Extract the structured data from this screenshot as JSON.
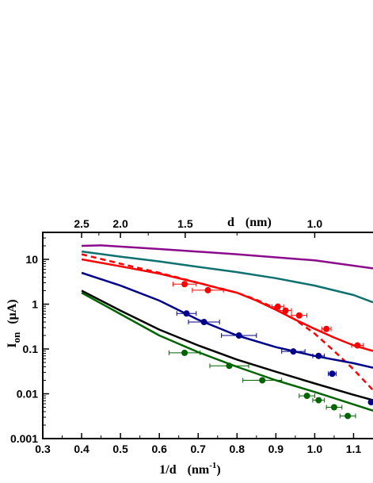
{
  "chart_data": {
    "type": "line",
    "x_axis": {
      "label": "1/d",
      "unit": "(nm",
      "unit_superscript": "-1",
      "unit_close": ")",
      "range": [
        0.3,
        1.15
      ],
      "ticks": [
        0.3,
        0.4,
        0.5,
        0.6,
        0.7,
        0.8,
        0.9,
        1.0,
        1.1
      ],
      "tick_labels": [
        "0.3",
        "0.4",
        "0.5",
        "0.6",
        "0.7",
        "0.8",
        "0.9",
        "1.0",
        "1.1"
      ]
    },
    "top_axis": {
      "label": "d",
      "unit": "(nm)",
      "ticks": [
        2.5,
        2.0,
        1.5,
        1.0
      ],
      "tick_labels": [
        "2.5",
        "2.0",
        "1.5",
        "1.0"
      ]
    },
    "y_axis": {
      "label_main": "I",
      "label_sub": "on",
      "unit": "(μA)",
      "scale": "log",
      "range": [
        0.001,
        40
      ],
      "ticks": [
        0.001,
        0.01,
        0.1,
        1,
        10
      ],
      "tick_labels": [
        "0.001",
        "0.01",
        "0.1",
        "1",
        "10"
      ]
    },
    "series": [
      {
        "color": "#8B0A8B",
        "style": "solid",
        "x": [
          0.4,
          0.45,
          0.6,
          0.8,
          1.0,
          1.15
        ],
        "y": [
          20,
          20.5,
          17,
          13,
          9.5,
          6.3
        ]
      },
      {
        "color": "#0F7070",
        "style": "solid",
        "x": [
          0.4,
          0.5,
          0.6,
          0.7,
          0.8,
          0.9,
          1.0,
          1.1,
          1.15
        ],
        "y": [
          15,
          11.5,
          9,
          6.8,
          5.2,
          3.8,
          2.6,
          1.6,
          1.1
        ]
      },
      {
        "color": "#FF0000",
        "style": "solid",
        "x": [
          0.4,
          0.5,
          0.6,
          0.7,
          0.75,
          0.8,
          0.85,
          0.9,
          0.95,
          1.0,
          1.05,
          1.1,
          1.15
        ],
        "y": [
          10,
          7,
          4.8,
          3.0,
          2.3,
          1.8,
          1.2,
          0.75,
          0.45,
          0.28,
          0.18,
          0.12,
          0.09
        ]
      },
      {
        "color": "#FF0000",
        "style": "dashed",
        "x": [
          0.4,
          0.5,
          0.6,
          0.7,
          0.8,
          0.85,
          0.9,
          0.95,
          1.0,
          1.05,
          1.1,
          1.15
        ],
        "y": [
          13,
          8,
          5.0,
          3.0,
          1.8,
          1.25,
          0.8,
          0.45,
          0.22,
          0.09,
          0.035,
          0.012
        ]
      },
      {
        "color": "#00008B",
        "style": "solid",
        "x": [
          0.4,
          0.5,
          0.6,
          0.7,
          0.8,
          0.9,
          1.0,
          1.1,
          1.15
        ],
        "y": [
          5.0,
          2.6,
          1.2,
          0.45,
          0.2,
          0.11,
          0.07,
          0.048,
          0.038
        ]
      },
      {
        "color": "#000000",
        "style": "solid",
        "x": [
          0.4,
          0.5,
          0.6,
          0.7,
          0.8,
          0.9,
          1.0,
          1.1,
          1.15
        ],
        "y": [
          2.0,
          0.72,
          0.27,
          0.12,
          0.058,
          0.031,
          0.017,
          0.0095,
          0.0072
        ]
      },
      {
        "color": "#006400",
        "style": "solid",
        "x": [
          0.4,
          0.5,
          0.6,
          0.7,
          0.8,
          0.9,
          1.0,
          1.1,
          1.15
        ],
        "y": [
          1.8,
          0.6,
          0.2,
          0.085,
          0.04,
          0.02,
          0.011,
          0.0058,
          0.0042
        ]
      }
    ],
    "points": [
      {
        "color": "#FF0000",
        "x": [
          0.665,
          0.725,
          0.905,
          0.925,
          0.96,
          1.03,
          1.11
        ],
        "y": [
          2.8,
          2.05,
          0.88,
          0.72,
          0.56,
          0.28,
          0.12
        ],
        "xerr": [
          0.03,
          0.04,
          0.015,
          0.015,
          0.02,
          0.012,
          0.015
        ]
      },
      {
        "color": "#00008B",
        "x": [
          0.67,
          0.715,
          0.805,
          0.945,
          1.01,
          1.045,
          1.145
        ],
        "y": [
          0.62,
          0.4,
          0.2,
          0.088,
          0.07,
          0.028,
          0.0065
        ],
        "xerr": [
          0.025,
          0.04,
          0.045,
          0.03,
          0.015,
          0.01,
          0.0
        ]
      },
      {
        "color": "#006400",
        "x": [
          0.665,
          0.78,
          0.865,
          0.98,
          1.01,
          1.05,
          1.085
        ],
        "y": [
          0.082,
          0.042,
          0.02,
          0.009,
          0.0072,
          0.005,
          0.0032
        ],
        "xerr": [
          0.04,
          0.05,
          0.05,
          0.02,
          0.015,
          0.02,
          0.02
        ]
      }
    ]
  }
}
